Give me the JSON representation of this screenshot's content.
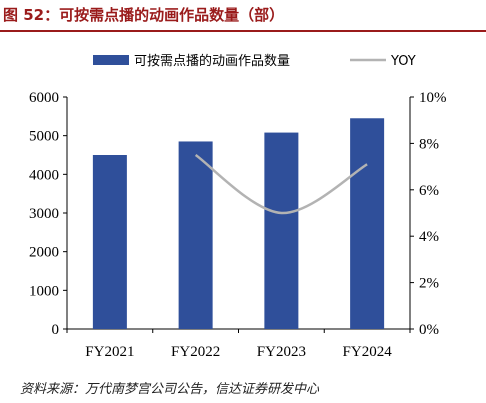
{
  "header": {
    "title": "图 52：可按需点播的动画作品数量（部）"
  },
  "footer": {
    "source": "资料来源：万代南梦宫公司公告，信达证券研发中心"
  },
  "colors": {
    "bar": "#2f4f9a",
    "line": "#b3b3b3",
    "title": "#9a1b1b"
  },
  "chart_data": {
    "type": "bar",
    "categories": [
      "FY2021",
      "FY2022",
      "FY2023",
      "FY2024"
    ],
    "series": [
      {
        "name": "可按需点播的动画作品数量",
        "type": "bar",
        "axis": "left",
        "values": [
          4500,
          4850,
          5080,
          5450
        ]
      },
      {
        "name": "YOY",
        "type": "line",
        "axis": "right",
        "smooth": true,
        "values": [
          null,
          7.5,
          5.0,
          7.1
        ]
      }
    ],
    "ylim": [
      0,
      6000
    ],
    "yticks": [
      0,
      1000,
      2000,
      3000,
      4000,
      5000,
      6000
    ],
    "y2lim": [
      0,
      10
    ],
    "y2ticks": [
      "0%",
      "2%",
      "4%",
      "6%",
      "8%",
      "10%"
    ],
    "legend": "top",
    "grid": false
  }
}
